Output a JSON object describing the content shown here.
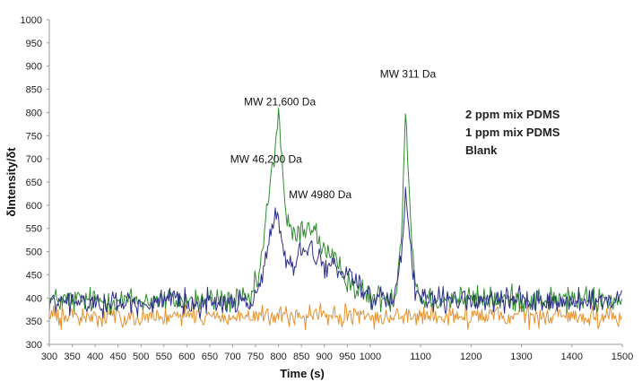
{
  "chart_data": {
    "type": "line",
    "title": "",
    "xlabel": "Time (s)",
    "ylabel": "δIntensity/δt",
    "xlim": [
      300,
      1500
    ],
    "ylim": [
      300,
      1000
    ],
    "grid": false,
    "x_ticks": [
      300,
      350,
      400,
      450,
      500,
      550,
      600,
      650,
      700,
      750,
      800,
      850,
      900,
      950,
      1000,
      1100,
      1200,
      1300,
      1400,
      1500
    ],
    "y_ticks": [
      300,
      350,
      400,
      450,
      500,
      550,
      600,
      650,
      700,
      750,
      800,
      850,
      900,
      950,
      1000
    ],
    "x_breakpoint": 1000,
    "x_breakpoint_fraction": 0.56,
    "legend": {
      "placement": "top-right",
      "entries": [
        "2 ppm mix PDMS",
        "1 ppm mix PDMS",
        "Blank"
      ]
    },
    "series": [
      {
        "name": "2 ppm mix PDMS",
        "color": "#2e8b2e",
        "baseline": 395,
        "noise": 20,
        "keypoints": [
          [
            300,
            395
          ],
          [
            740,
            395
          ],
          [
            760,
            460
          ],
          [
            775,
            590
          ],
          [
            790,
            700
          ],
          [
            800,
            805
          ],
          [
            808,
            690
          ],
          [
            818,
            560
          ],
          [
            835,
            530
          ],
          [
            850,
            545
          ],
          [
            870,
            560
          ],
          [
            890,
            520
          ],
          [
            910,
            490
          ],
          [
            940,
            455
          ],
          [
            970,
            420
          ],
          [
            1000,
            400
          ],
          [
            1050,
            400
          ],
          [
            1063,
            560
          ],
          [
            1070,
            810
          ],
          [
            1077,
            640
          ],
          [
            1088,
            440
          ],
          [
            1100,
            400
          ],
          [
            1500,
            395
          ]
        ]
      },
      {
        "name": "1 ppm mix PDMS",
        "color": "#2d2d8a",
        "baseline": 390,
        "noise": 18,
        "keypoints": [
          [
            300,
            390
          ],
          [
            740,
            390
          ],
          [
            760,
            430
          ],
          [
            775,
            510
          ],
          [
            790,
            560
          ],
          [
            798,
            575
          ],
          [
            808,
            520
          ],
          [
            818,
            470
          ],
          [
            835,
            470
          ],
          [
            850,
            500
          ],
          [
            870,
            505
          ],
          [
            890,
            480
          ],
          [
            910,
            470
          ],
          [
            940,
            450
          ],
          [
            960,
            460
          ],
          [
            975,
            430
          ],
          [
            1000,
            400
          ],
          [
            1050,
            395
          ],
          [
            1063,
            500
          ],
          [
            1070,
            630
          ],
          [
            1077,
            540
          ],
          [
            1088,
            420
          ],
          [
            1100,
            395
          ],
          [
            1500,
            390
          ]
        ]
      },
      {
        "name": "Blank",
        "color": "#e8902b",
        "baseline": 360,
        "noise": 16,
        "keypoints": [
          [
            300,
            360
          ],
          [
            1500,
            360
          ]
        ]
      }
    ],
    "annotations": [
      {
        "text": "MW 21,600 Da",
        "x": 803,
        "y": 815
      },
      {
        "text": "MW 46,200 Da",
        "x": 773,
        "y": 692
      },
      {
        "text": "MW 4980 Da",
        "x": 891,
        "y": 615
      },
      {
        "text": "MW 311 Da",
        "x": 1075,
        "y": 875
      }
    ]
  }
}
